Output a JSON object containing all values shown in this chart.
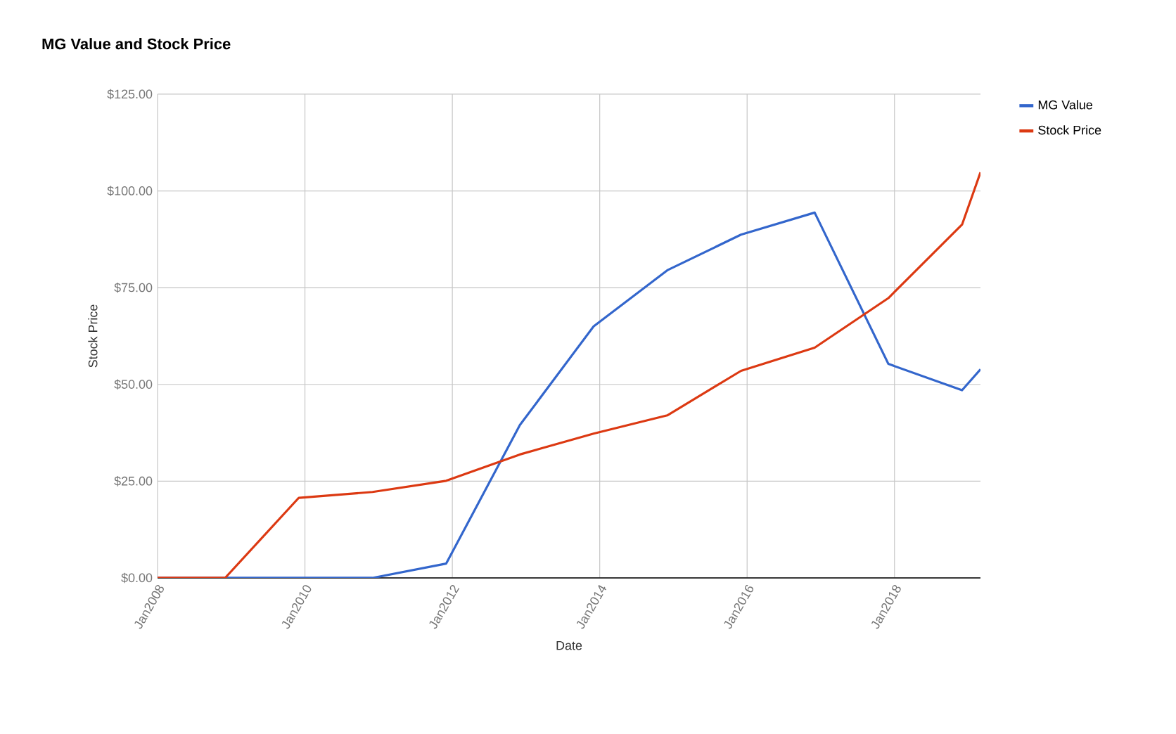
{
  "chart_data": {
    "type": "line",
    "title": "MG Value and Stock Price",
    "xlabel": "Date",
    "ylabel": "Stock Price",
    "x": [
      "2008-01",
      "2008-12",
      "2009-12",
      "2010-12",
      "2011-12",
      "2012-12",
      "2013-12",
      "2014-12",
      "2015-12",
      "2016-12",
      "2017-12",
      "2018-12",
      "2019-03"
    ],
    "series": [
      {
        "name": "MG Value",
        "color": "#3366cc",
        "values": [
          0,
          0,
          0,
          0,
          3.7,
          39.5,
          65.0,
          79.5,
          88.7,
          94.4,
          55.3,
          48.5,
          53.9
        ]
      },
      {
        "name": "Stock Price",
        "color": "#dc3912",
        "values": [
          0,
          0,
          20.7,
          22.2,
          25.1,
          31.9,
          37.3,
          42.0,
          53.5,
          59.5,
          72.3,
          91.3,
          104.8
        ]
      }
    ],
    "xlim": [
      "2008-01",
      "2019-03"
    ],
    "xticks": [
      {
        "value": "2008-01",
        "label": "Jan2008"
      },
      {
        "value": "2010-01",
        "label": "Jan2010"
      },
      {
        "value": "2012-01",
        "label": "Jan2012"
      },
      {
        "value": "2014-01",
        "label": "Jan2014"
      },
      {
        "value": "2016-01",
        "label": "Jan2016"
      },
      {
        "value": "2018-01",
        "label": "Jan2018"
      }
    ],
    "ylim": [
      0,
      125
    ],
    "yticks": [
      {
        "value": 0,
        "label": "$0.00"
      },
      {
        "value": 25,
        "label": "$25.00"
      },
      {
        "value": 50,
        "label": "$50.00"
      },
      {
        "value": 75,
        "label": "$75.00"
      },
      {
        "value": 100,
        "label": "$100.00"
      },
      {
        "value": 125,
        "label": "$125.00"
      }
    ],
    "grid": true,
    "legend": "right"
  }
}
